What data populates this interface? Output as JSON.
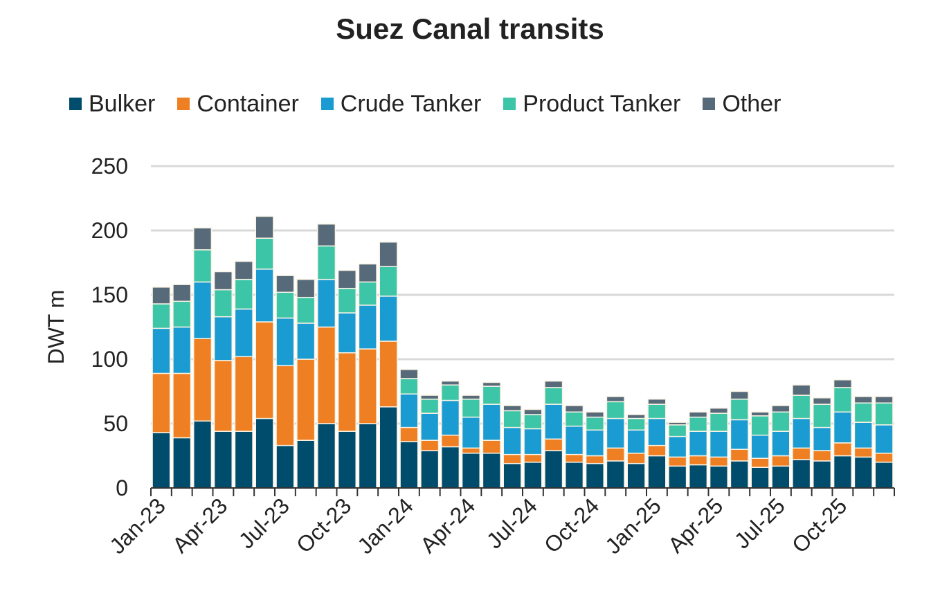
{
  "chart_data": {
    "type": "bar",
    "stacked": true,
    "title": "Suez Canal transits",
    "ylabel": "DWT m",
    "xlabel": "",
    "ylim": [
      0,
      250
    ],
    "yticks": [
      0,
      50,
      100,
      150,
      200,
      250
    ],
    "grid": true,
    "legend_position": "top",
    "x_tick_labels": [
      "Jan-23",
      "Apr-23",
      "Jul-23",
      "Oct-23",
      "Jan-24",
      "Apr-24",
      "Jul-24",
      "Oct-24",
      "Jan-25",
      "Apr-25",
      "Jul-25",
      "Oct-25"
    ],
    "categories": [
      "Jan-23",
      "Feb-23",
      "Mar-23",
      "Apr-23",
      "May-23",
      "Jun-23",
      "Jul-23",
      "Aug-23",
      "Sep-23",
      "Oct-23",
      "Nov-23",
      "Dec-23",
      "Jan-24",
      "Feb-24",
      "Mar-24",
      "Apr-24",
      "May-24",
      "Jun-24",
      "Jul-24",
      "Aug-24",
      "Sep-24",
      "Oct-24",
      "Nov-24",
      "Dec-24",
      "Jan-25",
      "Feb-25",
      "Mar-25",
      "Apr-25",
      "May-25",
      "Jun-25",
      "Jul-25",
      "Aug-25",
      "Sep-25",
      "Oct-25",
      "Nov-25",
      "Dec-25"
    ],
    "series": [
      {
        "name": "Bulker",
        "color": "#004C6D",
        "values": [
          43,
          39,
          52,
          44,
          44,
          54,
          33,
          37,
          50,
          44,
          50,
          63,
          36,
          29,
          32,
          27,
          27,
          19,
          20,
          29,
          20,
          19,
          21,
          19,
          25,
          17,
          18,
          17,
          21,
          16,
          17,
          22,
          21,
          25,
          24,
          20
        ]
      },
      {
        "name": "Container",
        "color": "#EE7F22",
        "values": [
          46,
          50,
          64,
          55,
          58,
          75,
          62,
          63,
          75,
          61,
          58,
          51,
          11,
          8,
          9,
          4,
          10,
          7,
          6,
          9,
          6,
          6,
          10,
          8,
          8,
          7,
          7,
          7,
          9,
          7,
          8,
          9,
          8,
          10,
          7,
          7
        ]
      },
      {
        "name": "Crude Tanker",
        "color": "#1A9CD2",
        "values": [
          35,
          36,
          44,
          34,
          37,
          41,
          37,
          28,
          37,
          31,
          34,
          35,
          26,
          21,
          27,
          24,
          28,
          21,
          20,
          27,
          22,
          20,
          23,
          18,
          21,
          16,
          19,
          20,
          23,
          18,
          19,
          23,
          18,
          24,
          20,
          22
        ]
      },
      {
        "name": "Product Tanker",
        "color": "#3CC5A6",
        "values": [
          19,
          20,
          25,
          21,
          23,
          24,
          20,
          20,
          26,
          19,
          18,
          23,
          12,
          11,
          12,
          14,
          14,
          13,
          11,
          13,
          11,
          10,
          13,
          9,
          11,
          9,
          11,
          14,
          16,
          15,
          15,
          18,
          18,
          19,
          15,
          17
        ]
      },
      {
        "name": "Other",
        "color": "#566A7A",
        "values": [
          13,
          13,
          17,
          14,
          14,
          17,
          13,
          14,
          17,
          14,
          14,
          19,
          7,
          3,
          3,
          3,
          3,
          4,
          4,
          5,
          5,
          4,
          4,
          3,
          4,
          2,
          4,
          4,
          6,
          3,
          5,
          8,
          5,
          6,
          5,
          5
        ]
      }
    ]
  }
}
